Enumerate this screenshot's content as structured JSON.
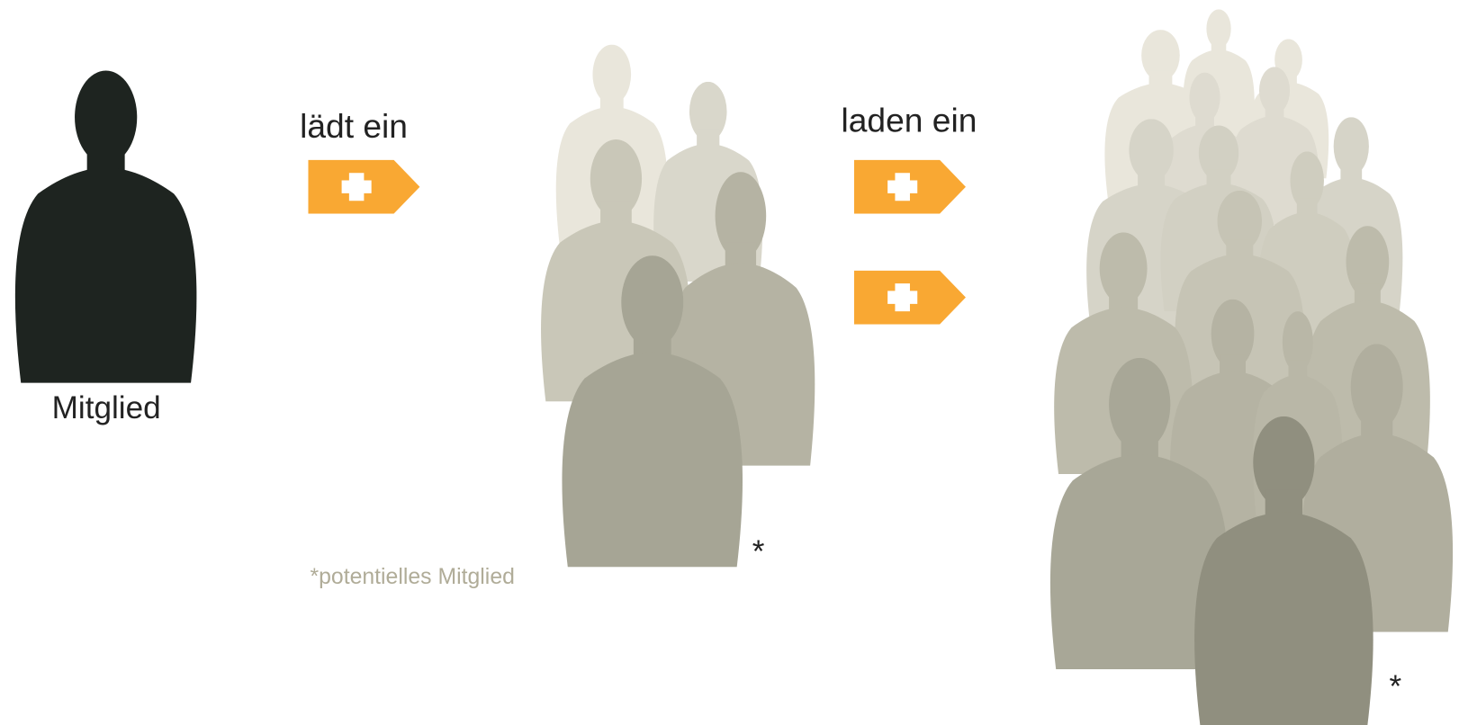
{
  "member_label": "Mitglied",
  "step1_label": "lädt ein",
  "step2_label": "laden ein",
  "asterisks": [
    "*",
    "*"
  ],
  "footnote": "*potentielles Mitglied"
}
